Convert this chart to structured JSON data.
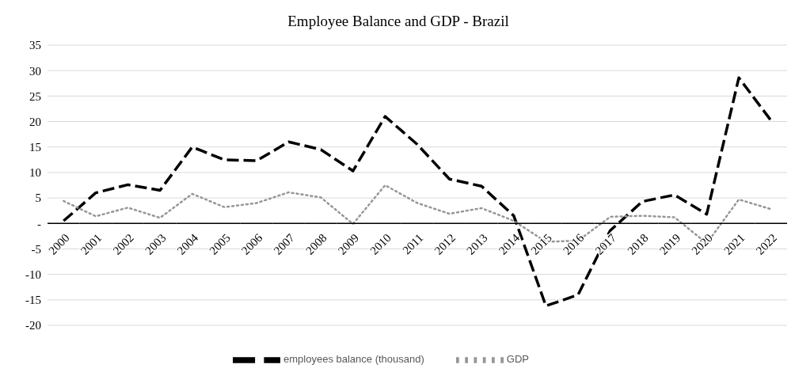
{
  "chart_data": {
    "type": "line",
    "title": "Employee Balance and GDP - Brazil",
    "categories": [
      "2000",
      "2001",
      "2002",
      "2003",
      "2004",
      "2005",
      "2006",
      "2007",
      "2008",
      "2009",
      "2010",
      "2011",
      "2012",
      "2013",
      "2014",
      "2015",
      "2016",
      "2017",
      "2018",
      "2019",
      "2020",
      "2021",
      "2022"
    ],
    "series": [
      {
        "name": "employees  balance (thousand)",
        "color": "#000000",
        "line_style": "dashed",
        "values": [
          0.5,
          6,
          7.6,
          6.5,
          15,
          12.5,
          12.3,
          16,
          14.5,
          10.3,
          21,
          15.5,
          8.7,
          7.3,
          1.5,
          -16.2,
          -14,
          -1.4,
          4.3,
          5.6,
          1.8,
          28.6,
          20.2
        ]
      },
      {
        "name": "GDP",
        "color": "#969696",
        "line_style": "dotted",
        "values": [
          4.4,
          1.4,
          3.1,
          1.1,
          5.8,
          3.2,
          4.0,
          6.1,
          5.1,
          -0.1,
          7.5,
          4.0,
          1.9,
          3.0,
          0.5,
          -3.6,
          -3.4,
          1.3,
          1.5,
          1.2,
          -3.9,
          4.7,
          2.8
        ]
      }
    ],
    "ylim": [
      -20,
      35
    ],
    "yticks": [
      -20,
      -15,
      -10,
      -5,
      {
        "value": 0,
        "label": "-"
      },
      5,
      10,
      15,
      20,
      25,
      30,
      35
    ],
    "grid": "y",
    "legend": "bottom",
    "marker": "none"
  }
}
